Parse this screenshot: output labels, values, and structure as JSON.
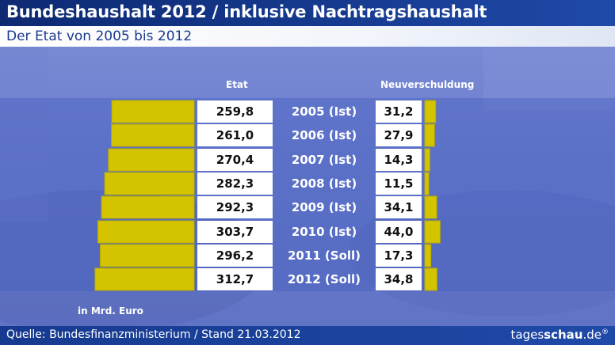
{
  "header": {
    "title": "Bundeshaushalt 2012 / inklusive Nachtragshaushalt",
    "subtitle": "Der Etat von 2005 bis 2012"
  },
  "footer": {
    "source": "Quelle: Bundesfinanzministerium / Stand 21.03.2012",
    "logo_part1": "tages",
    "logo_part2": "schau",
    "logo_part3": ".de",
    "logo_mark": "®"
  },
  "colors": {
    "bar": "#d4c400",
    "bar_border": "#b8aa00"
  },
  "chart_data": {
    "type": "bar",
    "title": "Der Etat von 2005 bis 2012",
    "unit": "in Mrd. Euro",
    "categories": [
      "2005 (Ist)",
      "2006 (Ist)",
      "2007 (Ist)",
      "2008 (Ist)",
      "2009 (Ist)",
      "2010 (Ist)",
      "2011 (Soll)",
      "2012 (Soll)"
    ],
    "series": [
      {
        "name": "Etat",
        "labels": [
          "259,8",
          "261,0",
          "270,4",
          "282,3",
          "292,3",
          "303,7",
          "296,2",
          "312,7"
        ],
        "values": [
          259.8,
          261.0,
          270.4,
          282.3,
          292.3,
          303.7,
          296.2,
          312.7
        ]
      },
      {
        "name": "Neuverschuldung",
        "labels": [
          "31,2",
          "27,9",
          "14,3",
          "11,5",
          "34,1",
          "44,0",
          "17,3",
          "34,8"
        ],
        "values": [
          31.2,
          27.9,
          14.3,
          11.5,
          34.1,
          44.0,
          17.3,
          34.8
        ]
      }
    ]
  }
}
